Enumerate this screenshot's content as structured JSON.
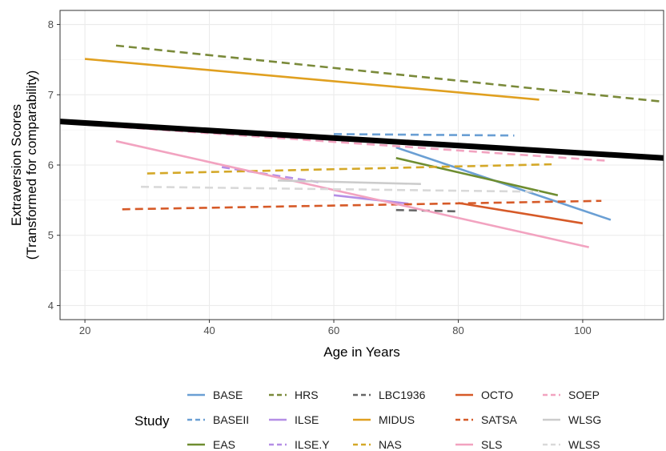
{
  "chart_data": {
    "type": "line",
    "xlabel": "Age in Years",
    "ylabel_line1": "Extraversion Scores",
    "ylabel_line2": "(Transformed for comparability)",
    "xlim": [
      16,
      113
    ],
    "ylim": [
      3.8,
      8.2
    ],
    "xticks": [
      "20",
      "40",
      "60",
      "80",
      "100"
    ],
    "yticks": [
      "4",
      "5",
      "6",
      "7",
      "8"
    ],
    "grid": true,
    "legend_position": "bottom",
    "legend_title": "Study",
    "overall": {
      "x": [
        16,
        113
      ],
      "y": [
        6.62,
        6.1
      ],
      "color": "#000000"
    },
    "series": [
      {
        "name": "BASE",
        "color": "#6a9fd4",
        "dash": false,
        "x": [
          70,
          104.5
        ],
        "y": [
          6.25,
          5.22
        ]
      },
      {
        "name": "BASEII",
        "color": "#6a9fd4",
        "dash": true,
        "x": [
          60,
          89
        ],
        "y": [
          6.44,
          6.42
        ]
      },
      {
        "name": "EAS",
        "color": "#6e8d30",
        "dash": false,
        "x": [
          70,
          96
        ],
        "y": [
          6.1,
          5.57
        ]
      },
      {
        "name": "HRS",
        "color": "#7a8a3a",
        "dash": true,
        "x": [
          25,
          113
        ],
        "y": [
          7.7,
          6.9
        ]
      },
      {
        "name": "ILSE",
        "color": "#b48ee6",
        "dash": false,
        "x": [
          60,
          72
        ],
        "y": [
          5.57,
          5.45
        ]
      },
      {
        "name": "ILSE.Y",
        "color": "#b48ee6",
        "dash": true,
        "x": [
          42,
          58
        ],
        "y": [
          5.97,
          5.75
        ]
      },
      {
        "name": "LBC1936",
        "color": "#666666",
        "dash": true,
        "x": [
          70,
          80
        ],
        "y": [
          5.36,
          5.34
        ]
      },
      {
        "name": "MIDUS",
        "color": "#e0a020",
        "dash": false,
        "x": [
          20,
          93
        ],
        "y": [
          7.51,
          6.93
        ]
      },
      {
        "name": "NAS",
        "color": "#d4a828",
        "dash": true,
        "x": [
          30,
          95
        ],
        "y": [
          5.88,
          6.01
        ]
      },
      {
        "name": "OCTO",
        "color": "#d65a28",
        "dash": false,
        "x": [
          80,
          100
        ],
        "y": [
          5.46,
          5.17
        ]
      },
      {
        "name": "SATSA",
        "color": "#d65a28",
        "dash": true,
        "x": [
          26,
          103
        ],
        "y": [
          5.37,
          5.49
        ]
      },
      {
        "name": "SLS",
        "color": "#f2a3c0",
        "dash": false,
        "x": [
          25,
          101
        ],
        "y": [
          6.34,
          4.83
        ]
      },
      {
        "name": "SOEP",
        "color": "#f2a3c0",
        "dash": true,
        "x": [
          16,
          104
        ],
        "y": [
          6.6,
          6.06
        ]
      },
      {
        "name": "WLSG",
        "color": "#cccccc",
        "dash": false,
        "x": [
          51,
          74
        ],
        "y": [
          5.78,
          5.73
        ]
      },
      {
        "name": "WLSS",
        "color": "#d9d9d9",
        "dash": true,
        "x": [
          29,
          93
        ],
        "y": [
          5.69,
          5.62
        ]
      }
    ]
  }
}
